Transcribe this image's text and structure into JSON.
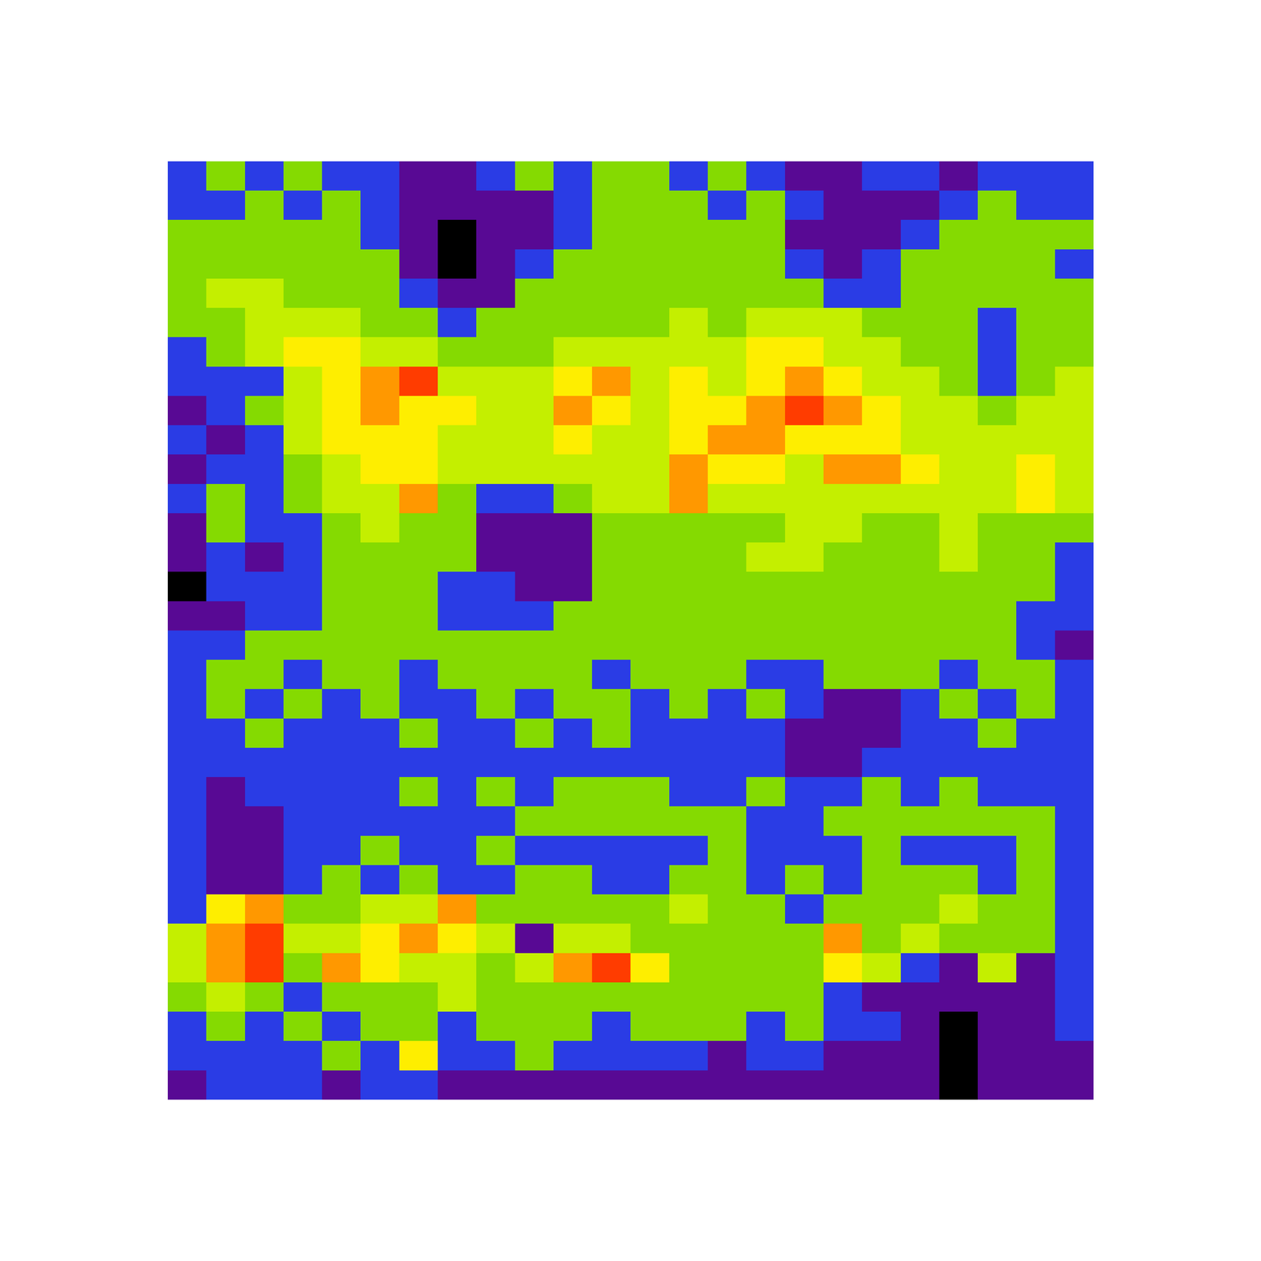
{
  "chart_data": {
    "type": "heatmap",
    "tick_labels": false,
    "cells": [
      [
        2,
        3,
        2,
        3,
        2,
        2,
        1,
        1,
        2,
        3,
        2,
        3,
        3,
        2,
        3,
        2,
        1,
        1,
        2,
        2,
        1,
        2,
        2,
        2
      ],
      [
        2,
        2,
        3,
        2,
        3,
        2,
        1,
        1,
        1,
        1,
        2,
        3,
        3,
        3,
        2,
        3,
        2,
        1,
        1,
        1,
        2,
        3,
        2,
        2
      ],
      [
        3,
        3,
        3,
        3,
        3,
        2,
        1,
        0,
        1,
        1,
        2,
        3,
        3,
        3,
        3,
        3,
        1,
        1,
        1,
        2,
        3,
        3,
        3,
        3
      ],
      [
        3,
        3,
        3,
        3,
        3,
        3,
        1,
        0,
        1,
        2,
        3,
        3,
        3,
        3,
        3,
        3,
        2,
        1,
        2,
        3,
        3,
        3,
        3,
        2
      ],
      [
        3,
        4,
        4,
        3,
        3,
        3,
        2,
        1,
        1,
        3,
        3,
        3,
        3,
        3,
        3,
        3,
        3,
        2,
        2,
        3,
        3,
        3,
        3,
        3
      ],
      [
        3,
        3,
        4,
        4,
        4,
        3,
        3,
        2,
        3,
        3,
        3,
        3,
        3,
        4,
        3,
        4,
        4,
        4,
        3,
        3,
        3,
        2,
        3,
        3
      ],
      [
        2,
        3,
        4,
        5,
        5,
        4,
        4,
        3,
        3,
        3,
        4,
        4,
        4,
        4,
        4,
        5,
        5,
        4,
        4,
        3,
        3,
        2,
        3,
        3
      ],
      [
        2,
        2,
        2,
        4,
        5,
        6,
        7,
        4,
        4,
        4,
        5,
        6,
        4,
        5,
        4,
        5,
        6,
        5,
        4,
        4,
        3,
        2,
        3,
        4
      ],
      [
        1,
        2,
        3,
        4,
        5,
        6,
        5,
        5,
        4,
        4,
        6,
        5,
        4,
        5,
        5,
        6,
        7,
        6,
        5,
        4,
        4,
        3,
        4,
        4
      ],
      [
        2,
        1,
        2,
        4,
        5,
        5,
        5,
        4,
        4,
        4,
        5,
        4,
        4,
        5,
        6,
        6,
        5,
        5,
        5,
        4,
        4,
        4,
        4,
        4
      ],
      [
        1,
        2,
        2,
        3,
        4,
        5,
        5,
        4,
        4,
        4,
        4,
        4,
        4,
        6,
        5,
        5,
        4,
        6,
        6,
        5,
        4,
        4,
        5,
        4
      ],
      [
        2,
        3,
        2,
        3,
        4,
        4,
        6,
        3,
        2,
        2,
        3,
        4,
        4,
        6,
        4,
        4,
        4,
        4,
        4,
        4,
        4,
        4,
        5,
        4
      ],
      [
        1,
        3,
        2,
        2,
        3,
        4,
        3,
        3,
        1,
        1,
        1,
        3,
        3,
        3,
        3,
        3,
        4,
        4,
        3,
        3,
        4,
        3,
        3,
        3
      ],
      [
        1,
        2,
        1,
        2,
        3,
        3,
        3,
        3,
        1,
        1,
        1,
        3,
        3,
        3,
        3,
        4,
        4,
        3,
        3,
        3,
        4,
        3,
        3,
        2
      ],
      [
        0,
        2,
        2,
        2,
        3,
        3,
        3,
        2,
        2,
        1,
        1,
        3,
        3,
        3,
        3,
        3,
        3,
        3,
        3,
        3,
        3,
        3,
        3,
        2
      ],
      [
        1,
        1,
        2,
        2,
        3,
        3,
        3,
        2,
        2,
        2,
        3,
        3,
        3,
        3,
        3,
        3,
        3,
        3,
        3,
        3,
        3,
        3,
        2,
        2
      ],
      [
        2,
        2,
        3,
        3,
        3,
        3,
        3,
        3,
        3,
        3,
        3,
        3,
        3,
        3,
        3,
        3,
        3,
        3,
        3,
        3,
        3,
        3,
        2,
        1
      ],
      [
        2,
        3,
        3,
        2,
        3,
        3,
        2,
        3,
        3,
        3,
        3,
        2,
        3,
        3,
        3,
        2,
        2,
        3,
        3,
        3,
        2,
        3,
        3,
        2
      ],
      [
        2,
        3,
        2,
        3,
        2,
        3,
        2,
        2,
        3,
        2,
        3,
        3,
        2,
        3,
        2,
        3,
        2,
        1,
        1,
        2,
        3,
        2,
        3,
        2
      ],
      [
        2,
        2,
        3,
        2,
        2,
        2,
        3,
        2,
        2,
        3,
        2,
        3,
        2,
        2,
        2,
        2,
        1,
        1,
        1,
        2,
        2,
        3,
        2,
        2
      ],
      [
        2,
        2,
        2,
        2,
        2,
        2,
        2,
        2,
        2,
        2,
        2,
        2,
        2,
        2,
        2,
        2,
        1,
        1,
        2,
        2,
        2,
        2,
        2,
        2
      ],
      [
        2,
        1,
        2,
        2,
        2,
        2,
        3,
        2,
        3,
        2,
        3,
        3,
        3,
        2,
        2,
        3,
        2,
        2,
        3,
        2,
        3,
        2,
        2,
        2
      ],
      [
        2,
        1,
        1,
        2,
        2,
        2,
        2,
        2,
        2,
        3,
        3,
        3,
        3,
        3,
        3,
        2,
        2,
        3,
        3,
        3,
        3,
        3,
        3,
        2
      ],
      [
        2,
        1,
        1,
        2,
        2,
        3,
        2,
        2,
        3,
        2,
        2,
        2,
        2,
        2,
        3,
        2,
        2,
        2,
        3,
        2,
        2,
        2,
        3,
        2
      ],
      [
        2,
        1,
        1,
        2,
        3,
        2,
        3,
        2,
        2,
        3,
        3,
        2,
        2,
        3,
        3,
        2,
        3,
        2,
        3,
        3,
        3,
        2,
        3,
        2
      ],
      [
        2,
        5,
        6,
        3,
        3,
        4,
        4,
        6,
        3,
        3,
        3,
        3,
        3,
        4,
        3,
        3,
        2,
        3,
        3,
        3,
        4,
        3,
        3,
        2
      ],
      [
        4,
        6,
        7,
        4,
        4,
        5,
        6,
        5,
        4,
        1,
        4,
        4,
        3,
        3,
        3,
        3,
        3,
        6,
        3,
        4,
        3,
        3,
        3,
        2
      ],
      [
        4,
        6,
        7,
        3,
        6,
        5,
        4,
        4,
        3,
        4,
        6,
        7,
        5,
        3,
        3,
        3,
        3,
        5,
        4,
        2,
        1,
        4,
        1,
        2
      ],
      [
        3,
        4,
        3,
        2,
        3,
        3,
        3,
        4,
        3,
        3,
        3,
        3,
        3,
        3,
        3,
        3,
        3,
        2,
        1,
        1,
        1,
        1,
        1,
        2
      ],
      [
        2,
        3,
        2,
        3,
        2,
        3,
        3,
        2,
        3,
        3,
        3,
        2,
        3,
        3,
        3,
        2,
        3,
        2,
        2,
        1,
        0,
        1,
        1,
        2
      ],
      [
        2,
        2,
        2,
        2,
        3,
        2,
        5,
        2,
        2,
        3,
        2,
        2,
        2,
        2,
        1,
        2,
        2,
        1,
        1,
        1,
        0,
        1,
        1,
        1
      ],
      [
        1,
        2,
        2,
        2,
        1,
        2,
        2,
        1,
        1,
        1,
        1,
        1,
        1,
        1,
        1,
        1,
        1,
        1,
        1,
        1,
        0,
        1,
        1,
        1
      ]
    ]
  }
}
